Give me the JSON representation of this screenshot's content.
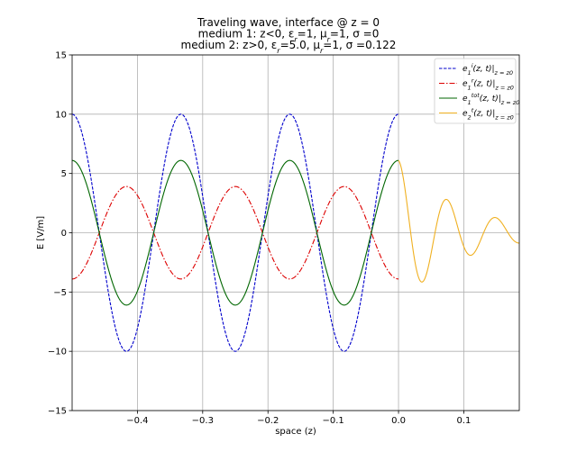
{
  "chart_data": {
    "type": "line",
    "title_lines": [
      "Traveling wave, interface @ z = 0",
      "medium 1: z<0, εr=1, μr=1, σ =0",
      "medium 2: z>0, εr=5.0, μr=1, σ =0.122"
    ],
    "title_parts": [
      [
        {
          "t": "Traveling wave, interface @ z = 0"
        }
      ],
      [
        {
          "t": "medium 1: z<0, ε"
        },
        {
          "t": "r",
          "sub": true
        },
        {
          "t": "=1, μ"
        },
        {
          "t": "r",
          "sub": true
        },
        {
          "t": "=1, σ =0"
        }
      ],
      [
        {
          "t": "medium 2: z>0, ε"
        },
        {
          "t": "r",
          "sub": true
        },
        {
          "t": "=5.0, μ"
        },
        {
          "t": "r",
          "sub": true
        },
        {
          "t": "=1, σ =0.122"
        }
      ]
    ],
    "xlabel": "space (z)",
    "ylabel": "E [V/m]",
    "xlim": [
      -0.5,
      0.185
    ],
    "ylim": [
      -15,
      15
    ],
    "xticks": [
      -0.4,
      -0.3,
      -0.2,
      -0.1,
      0.0,
      0.1
    ],
    "xtick_labels": [
      "−0.4",
      "−0.3",
      "−0.2",
      "−0.1",
      "0.0",
      "0.1"
    ],
    "yticks": [
      -15,
      -10,
      -5,
      0,
      5,
      10,
      15
    ],
    "ytick_labels": [
      "−15",
      "−10",
      "−5",
      "0",
      "5",
      "10",
      "15"
    ],
    "grid": true,
    "legend_position": "top-right",
    "series": [
      {
        "name": "e1i(z,t)|z=z0",
        "legend_parts": [
          {
            "t": "e"
          },
          {
            "t": "1",
            "sub": true
          },
          {
            "t": "i",
            "sup": true
          },
          {
            "t": "(z, t)|"
          },
          {
            "t": "z = z0",
            "sub": true
          }
        ],
        "color": "#0000cc",
        "style": "dashed",
        "z_range": [
          -0.5,
          0.0
        ],
        "formula": "A*cos(2*pi*(z - z_peak)/wavelength)",
        "amplitude": 10,
        "wavelength": 0.1667,
        "z_peak": 0.0
      },
      {
        "name": "e1r(z,t)|z=z0",
        "legend_parts": [
          {
            "t": "e"
          },
          {
            "t": "1",
            "sub": true
          },
          {
            "t": "r",
            "sup": true
          },
          {
            "t": "(z, t)|"
          },
          {
            "t": "z = z0",
            "sub": true
          }
        ],
        "color": "#dd0000",
        "style": "dashdot",
        "z_range": [
          -0.5,
          0.0
        ],
        "formula": "A*cos(2*pi*(z - z_peak)/wavelength)",
        "amplitude": -3.9,
        "wavelength": 0.1667,
        "z_peak": 0.0
      },
      {
        "name": "e1tot(z,t)|z=z0",
        "legend_parts": [
          {
            "t": "e"
          },
          {
            "t": "1",
            "sub": true
          },
          {
            "t": "tot",
            "sup": true
          },
          {
            "t": "(z, t)|"
          },
          {
            "t": "z = z0",
            "sub": true
          }
        ],
        "color": "#006600",
        "style": "solid",
        "z_range": [
          -0.5,
          0.0
        ],
        "formula": "A*cos(2*pi*(z - z_peak)/wavelength)",
        "amplitude": 6.1,
        "wavelength": 0.1667,
        "z_peak": 0.0
      },
      {
        "name": "e2t(z,t)|z=z0",
        "legend_parts": [
          {
            "t": "e"
          },
          {
            "t": "2",
            "sub": true
          },
          {
            "t": "t",
            "sup": true
          },
          {
            "t": "(z, t)|"
          },
          {
            "t": "z = z0",
            "sub": true
          }
        ],
        "color": "#f0b020",
        "style": "solid",
        "z_range": [
          0.0,
          0.185
        ],
        "formula": "A*exp(-alpha*z)*cos(2*pi*z/wavelength)",
        "amplitude": 6.1,
        "wavelength": 0.0745,
        "alpha": 10.5
      }
    ]
  }
}
